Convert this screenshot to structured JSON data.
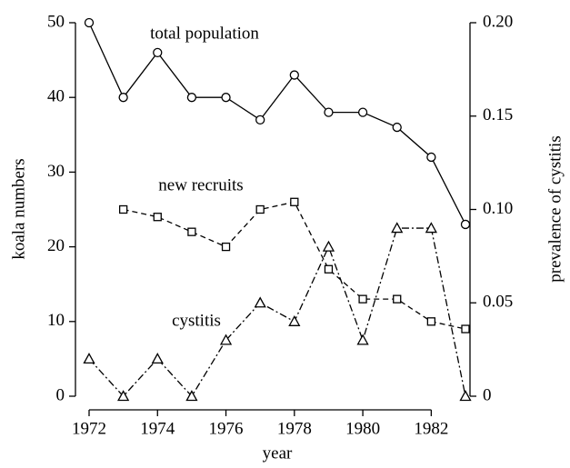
{
  "chart_data": {
    "type": "line",
    "xlabel": "year",
    "ylabel": "koala numbers",
    "y2label": "prevalence of cystitis",
    "annotations": [
      "total population",
      "new recruits",
      "cystitis"
    ],
    "x": [
      1972,
      1973,
      1974,
      1975,
      1976,
      1977,
      1978,
      1979,
      1980,
      1981,
      1982,
      1983
    ],
    "series": [
      {
        "name": "total population",
        "color": "#000000",
        "marker": "circle",
        "line_style": "solid",
        "values": [
          50,
          40,
          46,
          40,
          40,
          37,
          43,
          38,
          38,
          36,
          32,
          23
        ]
      },
      {
        "name": "new recruits",
        "color": "#000000",
        "marker": "square",
        "line_style": "dashed",
        "values": [
          null,
          25,
          24,
          22,
          20,
          25,
          26,
          17,
          13,
          13,
          10,
          9
        ]
      },
      {
        "name": "cystitis",
        "color": "#000000",
        "marker": "triangle",
        "line_style": "dashdot",
        "axis": "y2",
        "values": [
          0.02,
          0,
          0.02,
          0,
          0.03,
          0.05,
          0.04,
          0.08,
          0.03,
          0.09,
          0.09,
          0
        ]
      }
    ],
    "xlim": [
      1972,
      1983
    ],
    "xticks": [
      1972,
      1974,
      1976,
      1978,
      1980,
      1982
    ],
    "ylim": [
      0,
      50
    ],
    "yticks": [
      0,
      10,
      20,
      30,
      40,
      50
    ],
    "y2lim": [
      0,
      0.2
    ],
    "y2ticks": [
      0,
      0.05,
      {
        "value": 0.1,
        "label": "0.10"
      },
      0.15,
      {
        "value": 0.2,
        "label": "0.20"
      }
    ],
    "grid": false
  }
}
